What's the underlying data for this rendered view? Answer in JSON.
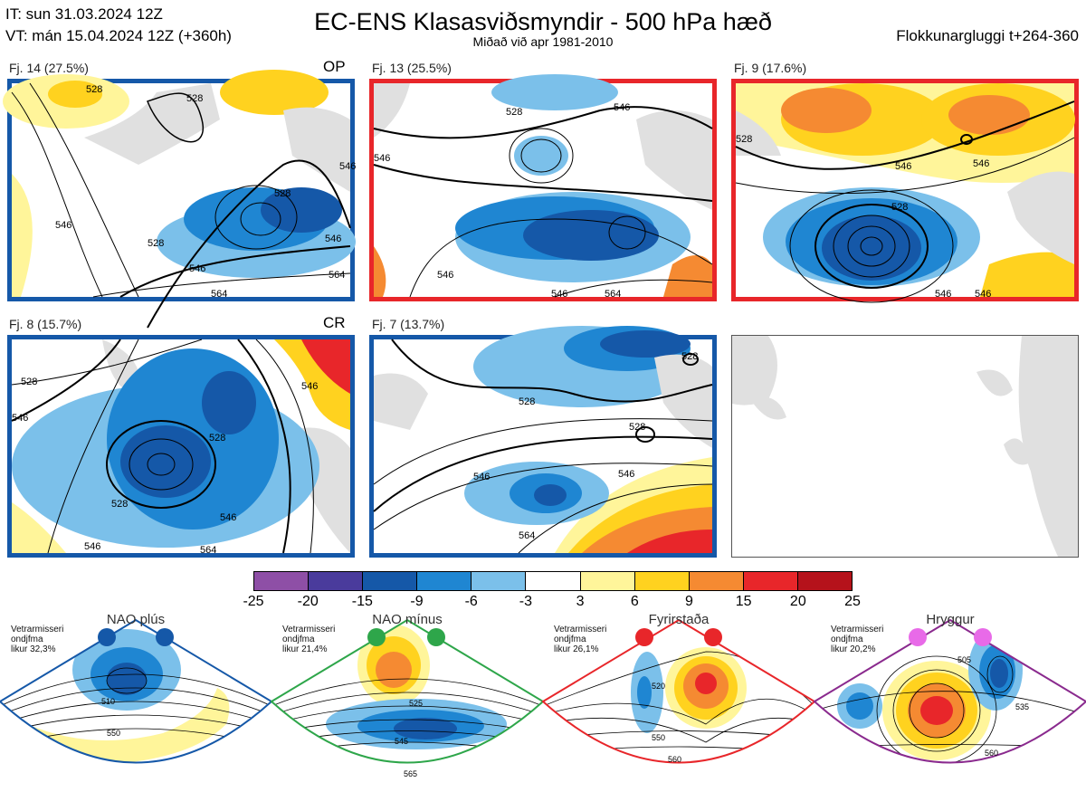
{
  "header": {
    "it": "IT: sun 31.03.2024 12Z",
    "vt": "VT: mán 15.04.2024 12Z  (+360h)",
    "title": "EC-ENS Klasasviðsmyndir - 500 hPa hæð",
    "subtitle": "Miðað við apr 1981-2010",
    "window": "Flokkunargluggi t+264-360"
  },
  "panels": [
    {
      "label": "Fj. 14 (27.5%)",
      "tag": "OP",
      "border": "#1558a8",
      "contours": [
        "528",
        "528",
        "528",
        "546",
        "546",
        "564",
        "528",
        "546",
        "546",
        "564"
      ]
    },
    {
      "label": "Fj. 13 (25.5%)",
      "tag": "",
      "border": "#e8262a",
      "contours": [
        "528",
        "546",
        "546",
        "546",
        "546",
        "564"
      ]
    },
    {
      "label": "Fj. 9 (17.6%)",
      "tag": "",
      "border": "#e8262a",
      "contours": [
        "528",
        "546",
        "528",
        "546",
        "546",
        "546"
      ]
    },
    {
      "label": "Fj. 8 (15.7%)",
      "tag": "CR",
      "border": "#1558a8",
      "contours": [
        "528",
        "528",
        "528",
        "546",
        "546",
        "546",
        "546",
        "564"
      ]
    },
    {
      "label": "Fj. 7 (13.7%)",
      "tag": "",
      "border": "#1558a8",
      "contours": [
        "528",
        "528",
        "528",
        "546",
        "546",
        "564"
      ]
    }
  ],
  "colorbar": {
    "ticks": [
      "-25",
      "-20",
      "-15",
      "-9",
      "-6",
      "-3",
      "3",
      "6",
      "9",
      "15",
      "20",
      "25"
    ],
    "colors": [
      "#8e4fa6",
      "#4a3b9c",
      "#1558a8",
      "#1f86d2",
      "#7bc0ea",
      "#ffffff",
      "#fff59a",
      "#ffd21f",
      "#f58a32",
      "#e8262a",
      "#b5121b"
    ]
  },
  "regimes": [
    {
      "title": "NAO plús",
      "text": "Vetrarmisseri\nondjfma\nlikur 32,3%",
      "color": "#1558a8",
      "contours": [
        "510",
        "550"
      ]
    },
    {
      "title": "NAO mínus",
      "text": "Vetrarmisseri\nondjfma\nlikur 21,4%",
      "color": "#2ea64a",
      "contours": [
        "525",
        "545",
        "565"
      ]
    },
    {
      "title": "Fyrirstaða",
      "text": "Vetrarmisseri\nondjfma\nlikur 26,1%",
      "color": "#e8262a",
      "contours": [
        "520",
        "550",
        "560"
      ]
    },
    {
      "title": "Hryggur",
      "text": "Vetrarmisseri\nondjfma\nlikur 20,2%",
      "color": "#8a2a8e",
      "contours": [
        "505",
        "535",
        "560"
      ]
    }
  ]
}
